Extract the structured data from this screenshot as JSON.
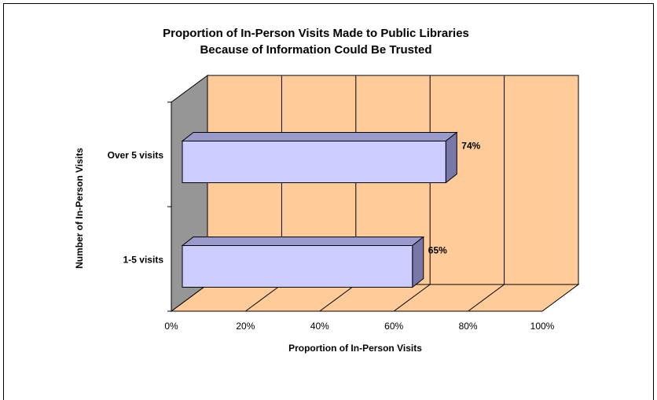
{
  "chart_data": {
    "type": "bar",
    "orientation": "horizontal",
    "three_d": true,
    "title_lines": [
      "Proportion of In-Person Visits Made to Public Libraries",
      "Because of Information Could Be Trusted"
    ],
    "xlabel": "Proportion of In-Person Visits",
    "ylabel": "Number of In-Person Visits",
    "categories": [
      "1-5 visits",
      "Over 5 visits"
    ],
    "values": [
      0.65,
      0.74
    ],
    "value_labels": [
      "65%",
      "74%"
    ],
    "x_ticks": [
      "0%",
      "20%",
      "40%",
      "60%",
      "80%",
      "100%"
    ],
    "xlim": [
      0,
      1
    ],
    "grid": "vertical",
    "legend": "none",
    "colors": {
      "wall": "#FFCC99",
      "side_wall": "#969696",
      "bar_front": "#CCCCFF",
      "bar_top": "#9999CC",
      "bar_side": "#7777AA",
      "outline": "#000000"
    }
  }
}
